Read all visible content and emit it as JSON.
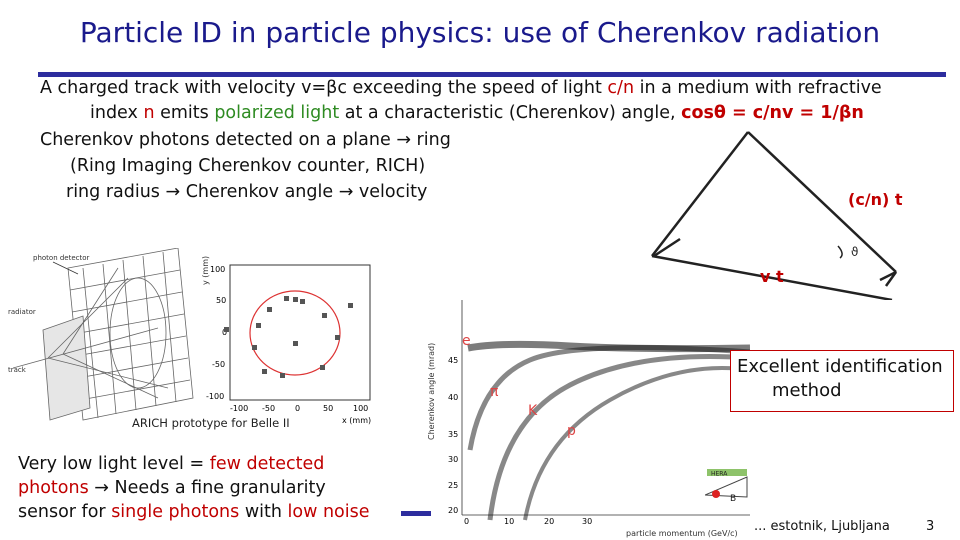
{
  "title": "Particle ID in particle physics: use of Cherenkov radiation",
  "body": {
    "l1": "A charged track with velocity v=βc exceeding the speed of light ",
    "l1_red": "c/n",
    "l1_end": " in a medium with refractive",
    "l2_a": "index ",
    "l2_n": "n",
    "l2_b": " emits ",
    "l2_green": "polarized light",
    "l2_c": " at a characteristic  (Cherenkov) angle, ",
    "l2_formula": "cosθ = c/nv =  1/βn",
    "l3": "Cherenkov photons detected on a plane → ring",
    "l4": "(Ring Imaging Cherenkov counter, RICH)",
    "l5": "ring radius → Cherenkov angle → velocity"
  },
  "cone_diagram": {
    "label_ct": "(c/n) t",
    "label_vt": "v t",
    "angle_symbol": "ϑ"
  },
  "rich_figure": {
    "caption": "ARICH prototype for Belle II",
    "label_detector": "photon detector",
    "label_radiator": "radiator",
    "label_track": "track",
    "ylabel": "y (mm)",
    "xlabel": "x (mm)",
    "yticks": [
      "100",
      "50",
      "0",
      "-50",
      "-100"
    ],
    "xticks": [
      "-100",
      "-50",
      "0",
      "50",
      "100"
    ]
  },
  "pid_plot": {
    "ylabel": "Cherenkov angle (mrad)",
    "xlabel": "particle momentum (GeV/c)",
    "yticks": [
      "45",
      "40",
      "35",
      "30",
      "25",
      "20"
    ],
    "xticks": [
      "0",
      "10",
      "20",
      "30"
    ],
    "particles": [
      "e",
      "π",
      "K",
      "p"
    ]
  },
  "logo": {
    "text": "HERA",
    "letter": "B"
  },
  "note": {
    "line1": "Excellent identification",
    "line2": "method"
  },
  "bottom_note": {
    "a": "Very low light level = ",
    "a_red": "few detected",
    "b_red": "photons",
    "b": " → Needs a fine granularity",
    "c": "sensor for ",
    "c_red": "single photons",
    "c2": " with ",
    "c_red2": "low noise"
  },
  "footer": {
    "credit": "... estotnik, Ljubljana",
    "page": "3"
  },
  "colors": {
    "title": "#1a1a8c",
    "accent_red": "#c00000",
    "accent_green": "#2e8b22",
    "rule": "#2d2d9e"
  }
}
